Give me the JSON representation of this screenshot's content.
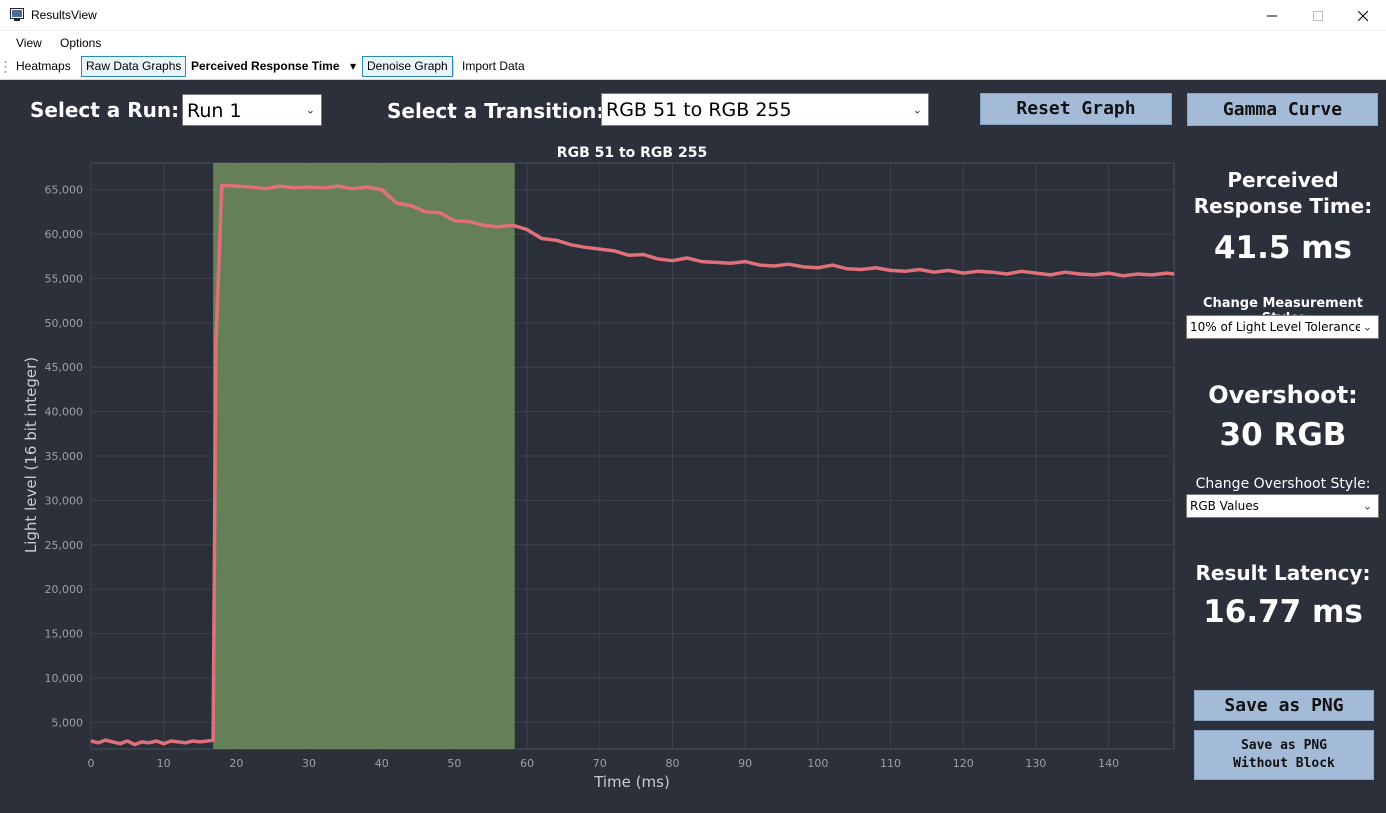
{
  "window": {
    "title": "ResultsView"
  },
  "menu": [
    "View",
    "Options"
  ],
  "toolbar": {
    "heatmaps": "Heatmaps",
    "raw_data_graphs": "Raw Data Graphs",
    "perceived_response_time": "Perceived Response Time",
    "denoise_graph": "Denoise Graph",
    "import_data": "Import Data"
  },
  "controls": {
    "run_label": "Select a Run:",
    "run_value": "Run 1",
    "transition_label": "Select a Transition:",
    "transition_value": "RGB 51 to RGB 255",
    "reset_graph": "Reset Graph",
    "gamma_curve": "Gamma Curve"
  },
  "results": {
    "perceived_title_1": "Perceived",
    "perceived_title_2": "Response Time:",
    "perceived_value": "41.5 ms",
    "measurement_style_label": "Change Measurement Style:",
    "measurement_style_value": "10% of Light Level Tolerance",
    "overshoot_title": "Overshoot:",
    "overshoot_value": "30 RGB",
    "overshoot_style_label": "Change Overshoot Style:",
    "overshoot_style_value": "RGB Values",
    "latency_title": "Result Latency:",
    "latency_value": "16.77 ms",
    "save_png": "Save as PNG",
    "save_png_noblock_1": "Save as PNG",
    "save_png_noblock_2": "Without Block"
  },
  "colors": {
    "background": "#2b303b",
    "plot_bg": "#2a2f3a",
    "grid": "#3c4250",
    "line": "#e0707a",
    "highlight": "#6b8a5c",
    "button": "#a4bbd8"
  },
  "chart_data": {
    "type": "line",
    "title": "RGB 51 to RGB 255",
    "xlabel": "Time (ms)",
    "ylabel": "Light level (16 bit integer)",
    "xlim": [
      0,
      149
    ],
    "ylim": [
      2000,
      68000
    ],
    "xticks": [
      0,
      10,
      20,
      30,
      40,
      50,
      60,
      70,
      80,
      90,
      100,
      110,
      120,
      130,
      140
    ],
    "yticks": [
      5000,
      10000,
      15000,
      20000,
      25000,
      30000,
      35000,
      40000,
      45000,
      50000,
      55000,
      60000,
      65000
    ],
    "ytick_labels": [
      "5,000",
      "10,000",
      "15,000",
      "20,000",
      "25,000",
      "30,000",
      "35,000",
      "40,000",
      "45,000",
      "50,000",
      "55,000",
      "60,000",
      "65,000"
    ],
    "highlight_range": [
      16.8,
      58.3
    ],
    "grid": true,
    "series": [
      {
        "x": [
          0,
          1,
          2,
          3,
          4,
          5,
          6,
          7,
          8,
          9,
          10,
          11,
          12,
          13,
          14,
          15,
          16,
          16.8,
          17.2,
          18,
          20,
          22,
          24,
          26,
          28,
          30,
          32,
          34,
          36,
          38,
          40,
          42,
          44,
          46,
          48,
          50,
          52,
          54,
          56,
          58,
          60,
          62,
          64,
          66,
          68,
          70,
          72,
          74,
          76,
          78,
          80,
          82,
          84,
          86,
          88,
          90,
          92,
          94,
          96,
          98,
          100,
          102,
          104,
          106,
          108,
          110,
          112,
          114,
          116,
          118,
          120,
          122,
          124,
          126,
          128,
          130,
          132,
          134,
          136,
          138,
          140,
          142,
          144,
          146,
          148,
          149
        ],
        "y": [
          2900,
          2700,
          3000,
          2800,
          2600,
          2900,
          2500,
          2800,
          2700,
          2900,
          2600,
          2900,
          2800,
          2700,
          2900,
          2800,
          2900,
          3000,
          48000,
          65500,
          65400,
          65300,
          65100,
          65400,
          65200,
          65300,
          65200,
          65400,
          65100,
          65300,
          65000,
          63500,
          63200,
          62500,
          62400,
          61500,
          61400,
          61000,
          60800,
          61000,
          60500,
          59500,
          59300,
          58800,
          58500,
          58300,
          58100,
          57600,
          57700,
          57200,
          57000,
          57300,
          56900,
          56800,
          56700,
          56900,
          56500,
          56400,
          56600,
          56300,
          56200,
          56500,
          56100,
          56000,
          56200,
          55900,
          55800,
          56000,
          55700,
          55900,
          55600,
          55800,
          55700,
          55500,
          55800,
          55600,
          55400,
          55700,
          55500,
          55400,
          55600,
          55300,
          55500,
          55400,
          55600,
          55500
        ]
      }
    ]
  }
}
